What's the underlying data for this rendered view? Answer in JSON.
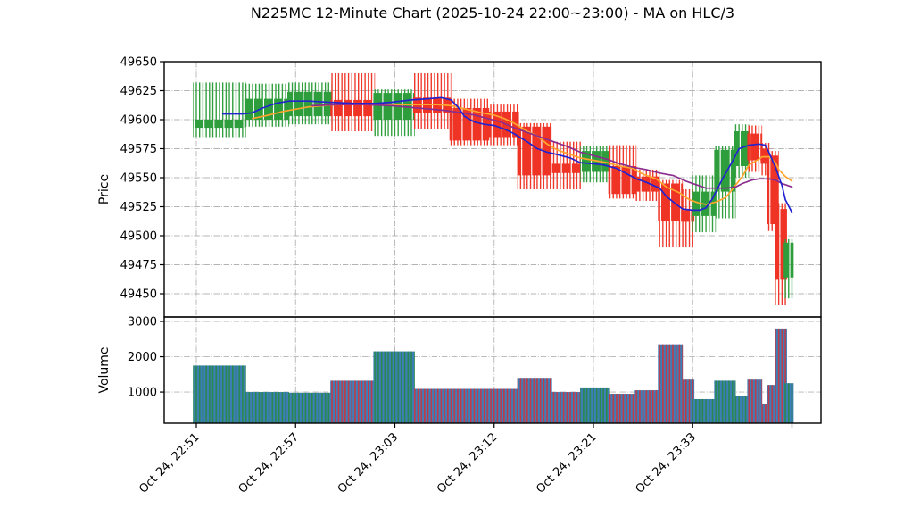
{
  "title": "N225MC 12-Minute Chart (2025-10-24 22:00~23:00) - MA on HLC/3",
  "colors": {
    "up": "#2e9e3c",
    "down": "#ef3425",
    "ma_blue": "#2323cf",
    "ma_orange": "#ffa42e",
    "ma_purple": "#8b2d8e",
    "volume_base": "#3d7eb8",
    "volume_stripe_up": "#28884e",
    "volume_stripe_down": "#c03a48",
    "grid": "#b4b4b4",
    "spine": "#000000"
  },
  "chart_data": {
    "type": "candlestick+volume",
    "title": "N225MC 12-Minute Chart (2025-10-24 22:00~23:00) - MA on HLC/3",
    "legend": "none",
    "grid": "dash-dot, both axes",
    "price_panel": {
      "ylabel": "Price",
      "ylim": [
        49430,
        49650
      ],
      "yticks": [
        49450,
        49475,
        49500,
        49525,
        49550,
        49575,
        49600,
        49625,
        49650
      ]
    },
    "volume_panel": {
      "ylabel": "Volume",
      "ylim": [
        100,
        3130
      ],
      "yticks": [
        1000,
        2000,
        3000
      ]
    },
    "xticks": [
      {
        "i": 0,
        "label": "Oct 24, 22:51"
      },
      {
        "i": 30,
        "label": "Oct 24, 22:57"
      },
      {
        "i": 60,
        "label": "Oct 24, 23:03"
      },
      {
        "i": 90,
        "label": "Oct 24, 23:12"
      },
      {
        "i": 120,
        "label": "Oct 24, 23:21"
      },
      {
        "i": 150,
        "label": "Oct 24, 23:33"
      },
      {
        "i": 180,
        "label": ""
      }
    ],
    "groups": [
      {
        "span": [
          -0.5,
          14.5
        ],
        "body": [
          49593,
          49600
        ],
        "wick": [
          49585,
          49632
        ],
        "volume": 1750,
        "dir": "up"
      },
      {
        "span": [
          15,
          27.5
        ],
        "body": [
          49600,
          49618
        ],
        "wick": [
          49594,
          49631
        ],
        "volume": 1000,
        "dir": "up"
      },
      {
        "span": [
          28,
          40.5
        ],
        "body": [
          49603,
          49624
        ],
        "wick": [
          49596,
          49632
        ],
        "volume": 980,
        "dir": "up"
      },
      {
        "span": [
          41,
          53.5
        ],
        "body": [
          49603,
          49617
        ],
        "wick": [
          49590,
          49640
        ],
        "volume": 1320,
        "dir": "down"
      },
      {
        "span": [
          54,
          65.5
        ],
        "body": [
          49600,
          49623
        ],
        "wick": [
          49586,
          49626
        ],
        "volume": 2150,
        "dir": "up"
      },
      {
        "span": [
          66,
          76.5
        ],
        "body": [
          49606,
          49619
        ],
        "wick": [
          49592,
          49640
        ],
        "volume": 1090,
        "dir": "down"
      },
      {
        "span": [
          77,
          88
        ],
        "body": [
          49582,
          49610
        ],
        "wick": [
          49578,
          49618
        ],
        "volume": 1090,
        "dir": "down"
      },
      {
        "span": [
          88.5,
          97
        ],
        "body": [
          49585,
          49607
        ],
        "wick": [
          49578,
          49613
        ],
        "volume": 1090,
        "dir": "down"
      },
      {
        "span": [
          97.5,
          107
        ],
        "body": [
          49552,
          49594
        ],
        "wick": [
          49540,
          49597
        ],
        "volume": 1400,
        "dir": "down"
      },
      {
        "span": [
          107.5,
          116
        ],
        "body": [
          49554,
          49562
        ],
        "wick": [
          49540,
          49581
        ],
        "volume": 1000,
        "dir": "down"
      },
      {
        "span": [
          116.5,
          124.5
        ],
        "body": [
          49555,
          49573
        ],
        "wick": [
          49546,
          49577
        ],
        "volume": 1130,
        "dir": "up"
      },
      {
        "span": [
          125,
          132.5
        ],
        "body": [
          49536,
          49560
        ],
        "wick": [
          49532,
          49578
        ],
        "volume": 950,
        "dir": "down"
      },
      {
        "span": [
          133,
          139.5
        ],
        "body": [
          49538,
          49551
        ],
        "wick": [
          49530,
          49557
        ],
        "volume": 1050,
        "dir": "down"
      },
      {
        "span": [
          140,
          146.5
        ],
        "body": [
          49513,
          49545
        ],
        "wick": [
          49490,
          49548
        ],
        "volume": 2350,
        "dir": "down"
      },
      {
        "span": [
          146.5,
          150
        ],
        "body": [
          49512,
          49522
        ],
        "wick": [
          49490,
          49540
        ],
        "volume": 1350,
        "dir": "down"
      },
      {
        "span": [
          150.5,
          156.5
        ],
        "body": [
          49517,
          49538
        ],
        "wick": [
          49503,
          49552
        ],
        "volume": 800,
        "dir": "up"
      },
      {
        "span": [
          157,
          162.5
        ],
        "body": [
          49538,
          49574
        ],
        "wick": [
          49515,
          49577
        ],
        "volume": 1320,
        "dir": "up"
      },
      {
        "span": [
          163,
          166.5
        ],
        "body": [
          49560,
          49590
        ],
        "wick": [
          49550,
          49596
        ],
        "volume": 880,
        "dir": "up"
      },
      {
        "span": [
          167,
          170.5
        ],
        "body": [
          49565,
          49588
        ],
        "wick": [
          49555,
          49595
        ],
        "volume": 1350,
        "dir": "down"
      },
      {
        "span": [
          171,
          173
        ],
        "body": [
          49562,
          49575
        ],
        "wick": [
          49552,
          49580
        ],
        "volume": 650,
        "dir": "down"
      },
      {
        "span": [
          173,
          175.5
        ],
        "body": [
          49510,
          49569
        ],
        "wick": [
          49504,
          49573
        ],
        "volume": 1200,
        "dir": "down"
      },
      {
        "span": [
          175.5,
          178
        ],
        "body": [
          49462,
          49523
        ],
        "wick": [
          49440,
          49528
        ],
        "volume": 2800,
        "dir": "down"
      },
      {
        "span": [
          178,
          180
        ],
        "body": [
          49464,
          49494
        ],
        "wick": [
          49446,
          49497
        ],
        "volume": 1250,
        "dir": "up"
      }
    ],
    "ma_series": [
      {
        "name": "ma-fast",
        "color_key": "ma_blue",
        "points": [
          [
            8,
            49605
          ],
          [
            14,
            49605
          ],
          [
            17,
            49606
          ],
          [
            20,
            49610
          ],
          [
            24,
            49614
          ],
          [
            28,
            49616
          ],
          [
            34,
            49616
          ],
          [
            40,
            49615
          ],
          [
            48,
            49614
          ],
          [
            54,
            49614
          ],
          [
            59,
            49615
          ],
          [
            65,
            49617
          ],
          [
            70,
            49618
          ],
          [
            74,
            49619
          ],
          [
            77,
            49617
          ],
          [
            79,
            49611
          ],
          [
            81,
            49603
          ],
          [
            84,
            49598
          ],
          [
            87,
            49596
          ],
          [
            90,
            49595
          ],
          [
            93,
            49592
          ],
          [
            96,
            49588
          ],
          [
            100,
            49581
          ],
          [
            103,
            49575
          ],
          [
            106,
            49572
          ],
          [
            109,
            49570
          ],
          [
            113,
            49567
          ],
          [
            116,
            49563
          ],
          [
            120,
            49562
          ],
          [
            123,
            49561
          ],
          [
            127,
            49558
          ],
          [
            129,
            49555
          ],
          [
            133,
            49549
          ],
          [
            136,
            49546
          ],
          [
            140,
            49541
          ],
          [
            142,
            49534
          ],
          [
            145,
            49527
          ],
          [
            147,
            49523
          ],
          [
            150,
            49522
          ],
          [
            152,
            49522
          ],
          [
            154,
            49524
          ],
          [
            156,
            49532
          ],
          [
            159,
            49549
          ],
          [
            162,
            49564
          ],
          [
            164,
            49575
          ],
          [
            167,
            49578
          ],
          [
            170,
            49579
          ],
          [
            172,
            49578
          ],
          [
            173,
            49572
          ],
          [
            175,
            49559
          ],
          [
            177,
            49543
          ],
          [
            178,
            49531
          ],
          [
            180,
            49520
          ]
        ]
      },
      {
        "name": "ma-mid",
        "color_key": "ma_orange",
        "points": [
          [
            17,
            49601
          ],
          [
            22,
            49604
          ],
          [
            26,
            49607
          ],
          [
            30,
            49609
          ],
          [
            34,
            49611
          ],
          [
            38,
            49612
          ],
          [
            43,
            49613
          ],
          [
            54,
            49613
          ],
          [
            65,
            49613
          ],
          [
            73,
            49613
          ],
          [
            77,
            49612
          ],
          [
            80,
            49610
          ],
          [
            83,
            49608
          ],
          [
            86,
            49606
          ],
          [
            90,
            49604
          ],
          [
            93,
            49601
          ],
          [
            96,
            49597
          ],
          [
            100,
            49590
          ],
          [
            103,
            49586
          ],
          [
            106,
            49579
          ],
          [
            109,
            49574
          ],
          [
            113,
            49570
          ],
          [
            116,
            49567
          ],
          [
            120,
            49565
          ],
          [
            124,
            49563
          ],
          [
            128,
            49560
          ],
          [
            132,
            49558
          ],
          [
            135,
            49553
          ],
          [
            139,
            49549
          ],
          [
            142,
            49542
          ],
          [
            146,
            49537
          ],
          [
            149,
            49531
          ],
          [
            152,
            49528
          ],
          [
            154,
            49527
          ],
          [
            157,
            49529
          ],
          [
            160,
            49533
          ],
          [
            162,
            49540
          ],
          [
            165,
            49551
          ],
          [
            167,
            49561
          ],
          [
            170,
            49566
          ],
          [
            171,
            49568
          ],
          [
            173,
            49568
          ],
          [
            175,
            49563
          ],
          [
            176,
            49557
          ],
          [
            178,
            49551
          ],
          [
            180,
            49547
          ]
        ]
      },
      {
        "name": "ma-slow",
        "color_key": "ma_purple",
        "points": [
          [
            35,
            49612
          ],
          [
            43,
            49613
          ],
          [
            51,
            49613
          ],
          [
            59,
            49612
          ],
          [
            67,
            49610
          ],
          [
            75,
            49608
          ],
          [
            80,
            49606
          ],
          [
            84,
            49604
          ],
          [
            88,
            49601
          ],
          [
            92,
            49598
          ],
          [
            96,
            49593
          ],
          [
            100,
            49589
          ],
          [
            104,
            49585
          ],
          [
            108,
            49581
          ],
          [
            112,
            49577
          ],
          [
            116,
            49572
          ],
          [
            120,
            49569
          ],
          [
            124,
            49566
          ],
          [
            128,
            49562
          ],
          [
            132,
            49559
          ],
          [
            136,
            49557
          ],
          [
            140,
            49554
          ],
          [
            144,
            49552
          ],
          [
            148,
            49547
          ],
          [
            152,
            49543
          ],
          [
            154,
            49541
          ],
          [
            157,
            49541
          ],
          [
            160,
            49541
          ],
          [
            163,
            49542
          ],
          [
            165,
            49545
          ],
          [
            168,
            49548
          ],
          [
            170,
            49549
          ],
          [
            173,
            49549
          ],
          [
            175,
            49548
          ],
          [
            177,
            49545
          ],
          [
            179,
            49543
          ],
          [
            180,
            49542
          ]
        ]
      }
    ]
  }
}
